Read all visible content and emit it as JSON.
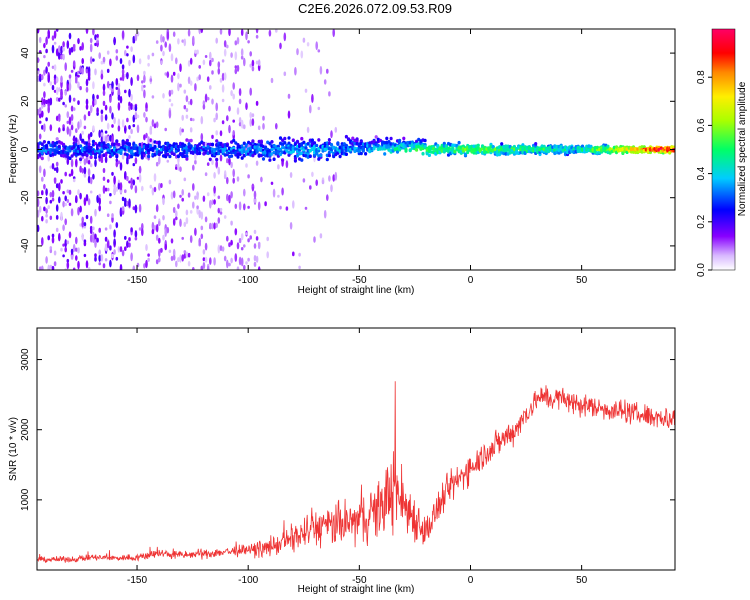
{
  "page_title": "C2E6.2026.072.09.53.R09",
  "colors": {
    "frame": "#000000",
    "snr_line": "#ee3333",
    "spectrogram_low": "#7a2cff",
    "colormap": [
      "#ffffff",
      "#7700ff",
      "#0000ff",
      "#00ffff",
      "#00ff00",
      "#ffff00",
      "#ff9900",
      "#ff0000",
      "#ff0088"
    ]
  },
  "chart_data": [
    {
      "type": "heatmap",
      "name": "spectrogram",
      "title": "C2E6.2026.072.09.53.R09",
      "xlabel": "Height of straight line (km)",
      "ylabel": "Frequency (Hz)",
      "xlim": [
        -195,
        92
      ],
      "ylim": [
        -50,
        50
      ],
      "xticks": [
        -150,
        -100,
        -50,
        0,
        50
      ],
      "yticks": [
        -40,
        -20,
        0,
        20,
        40
      ],
      "x_tick_labels": [
        "-150",
        "-100",
        "-50",
        "0",
        "50"
      ],
      "y_tick_labels": [
        "-40",
        "-20",
        "0",
        "20",
        "40"
      ],
      "ridge": [
        {
          "x": -150,
          "width_hz": 8,
          "amplitude": 0.3
        },
        {
          "x": -120,
          "width_hz": 8,
          "amplitude": 0.3
        },
        {
          "x": -80,
          "width_hz": 10,
          "amplitude": 0.35
        },
        {
          "x": -50,
          "width_hz": 8,
          "amplitude": 0.35
        },
        {
          "x": -25,
          "width_hz": 6,
          "amplitude": 0.5
        },
        {
          "x": 0,
          "width_hz": 5,
          "amplitude": 0.55
        },
        {
          "x": 50,
          "width_hz": 4,
          "amplitude": 0.45
        },
        {
          "x": 85,
          "width_hz": 3,
          "amplitude": 0.95
        }
      ],
      "colorbar": {
        "label": "Normalized spectral amplitude",
        "range": [
          0.0,
          1.0
        ],
        "ticks": [
          0.0,
          0.2,
          0.4,
          0.6,
          0.8
        ],
        "tick_labels": [
          "0.0",
          "0.2",
          "0.4",
          "0.6",
          "0.8"
        ]
      }
    },
    {
      "type": "line",
      "name": "snr",
      "xlabel": "Height of straight line (km)",
      "ylabel": "SNR (10 * v/v)",
      "xlim": [
        -195,
        92
      ],
      "ylim": [
        0,
        3450
      ],
      "xticks": [
        -150,
        -100,
        -50,
        0,
        50
      ],
      "yticks": [
        1000,
        2000,
        3000
      ],
      "x_tick_labels": [
        "-150",
        "-100",
        "-50",
        "0",
        "50"
      ],
      "y_tick_labels": [
        "1000",
        "2000",
        "3000"
      ],
      "series": [
        {
          "name": "SNR",
          "x": [
            -195,
            -180,
            -170,
            -160,
            -150,
            -140,
            -130,
            -120,
            -110,
            -100,
            -90,
            -80,
            -70,
            -60,
            -50,
            -40,
            -35,
            -30,
            -25,
            -20,
            -15,
            -10,
            -5,
            0,
            10,
            20,
            30,
            40,
            50,
            60,
            70,
            80,
            92
          ],
          "mean": [
            150,
            150,
            180,
            170,
            180,
            240,
            210,
            230,
            260,
            280,
            320,
            450,
            600,
            640,
            700,
            900,
            1200,
            950,
            750,
            550,
            850,
            1150,
            1300,
            1480,
            1750,
            2000,
            2450,
            2450,
            2350,
            2300,
            2250,
            2200,
            2150
          ],
          "spread": [
            60,
            60,
            70,
            60,
            80,
            100,
            90,
            100,
            110,
            130,
            180,
            300,
            400,
            450,
            500,
            650,
            900,
            700,
            500,
            350,
            350,
            350,
            350,
            320,
            300,
            280,
            250,
            250,
            250,
            230,
            230,
            240,
            250
          ]
        }
      ]
    }
  ]
}
